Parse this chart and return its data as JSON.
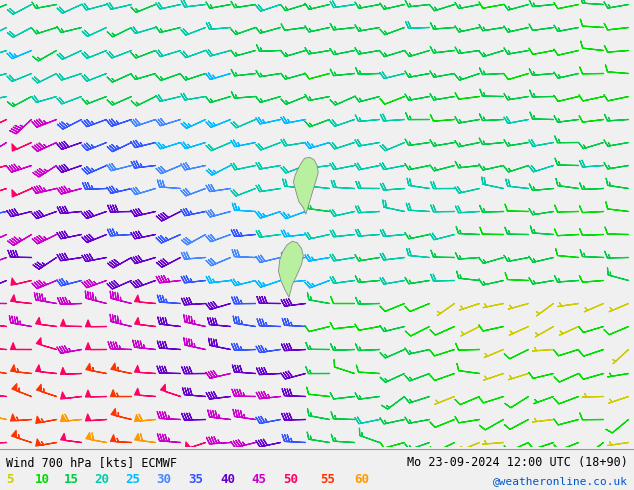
{
  "title_left": "Wind 700 hPa [kts] ECMWF",
  "title_right": "Mo 23-09-2024 12:00 UTC (18+90)",
  "credit": "@weatheronline.co.uk",
  "background_color": "#f0f0f0",
  "legend_values": [
    5,
    10,
    15,
    20,
    25,
    30,
    35,
    40,
    45,
    50,
    55,
    60
  ],
  "legend_colors": [
    "#cccc00",
    "#00dd00",
    "#00cc44",
    "#00ccaa",
    "#00bbff",
    "#4488ff",
    "#3355ff",
    "#6600cc",
    "#cc00cc",
    "#ff0066",
    "#ff3300",
    "#ff9900"
  ],
  "speed_color_map": [
    [
      5,
      "#cccc00"
    ],
    [
      10,
      "#00dd00"
    ],
    [
      15,
      "#00cc44"
    ],
    [
      20,
      "#00ccaa"
    ],
    [
      25,
      "#00bbff"
    ],
    [
      30,
      "#4488ff"
    ],
    [
      35,
      "#3355ff"
    ],
    [
      40,
      "#6600cc"
    ],
    [
      45,
      "#cc00cc"
    ],
    [
      50,
      "#ff0066"
    ],
    [
      55,
      "#ff3300"
    ],
    [
      60,
      "#ff9900"
    ]
  ],
  "figsize": [
    6.34,
    4.9
  ],
  "dpi": 100,
  "nx": 26,
  "ny": 20
}
